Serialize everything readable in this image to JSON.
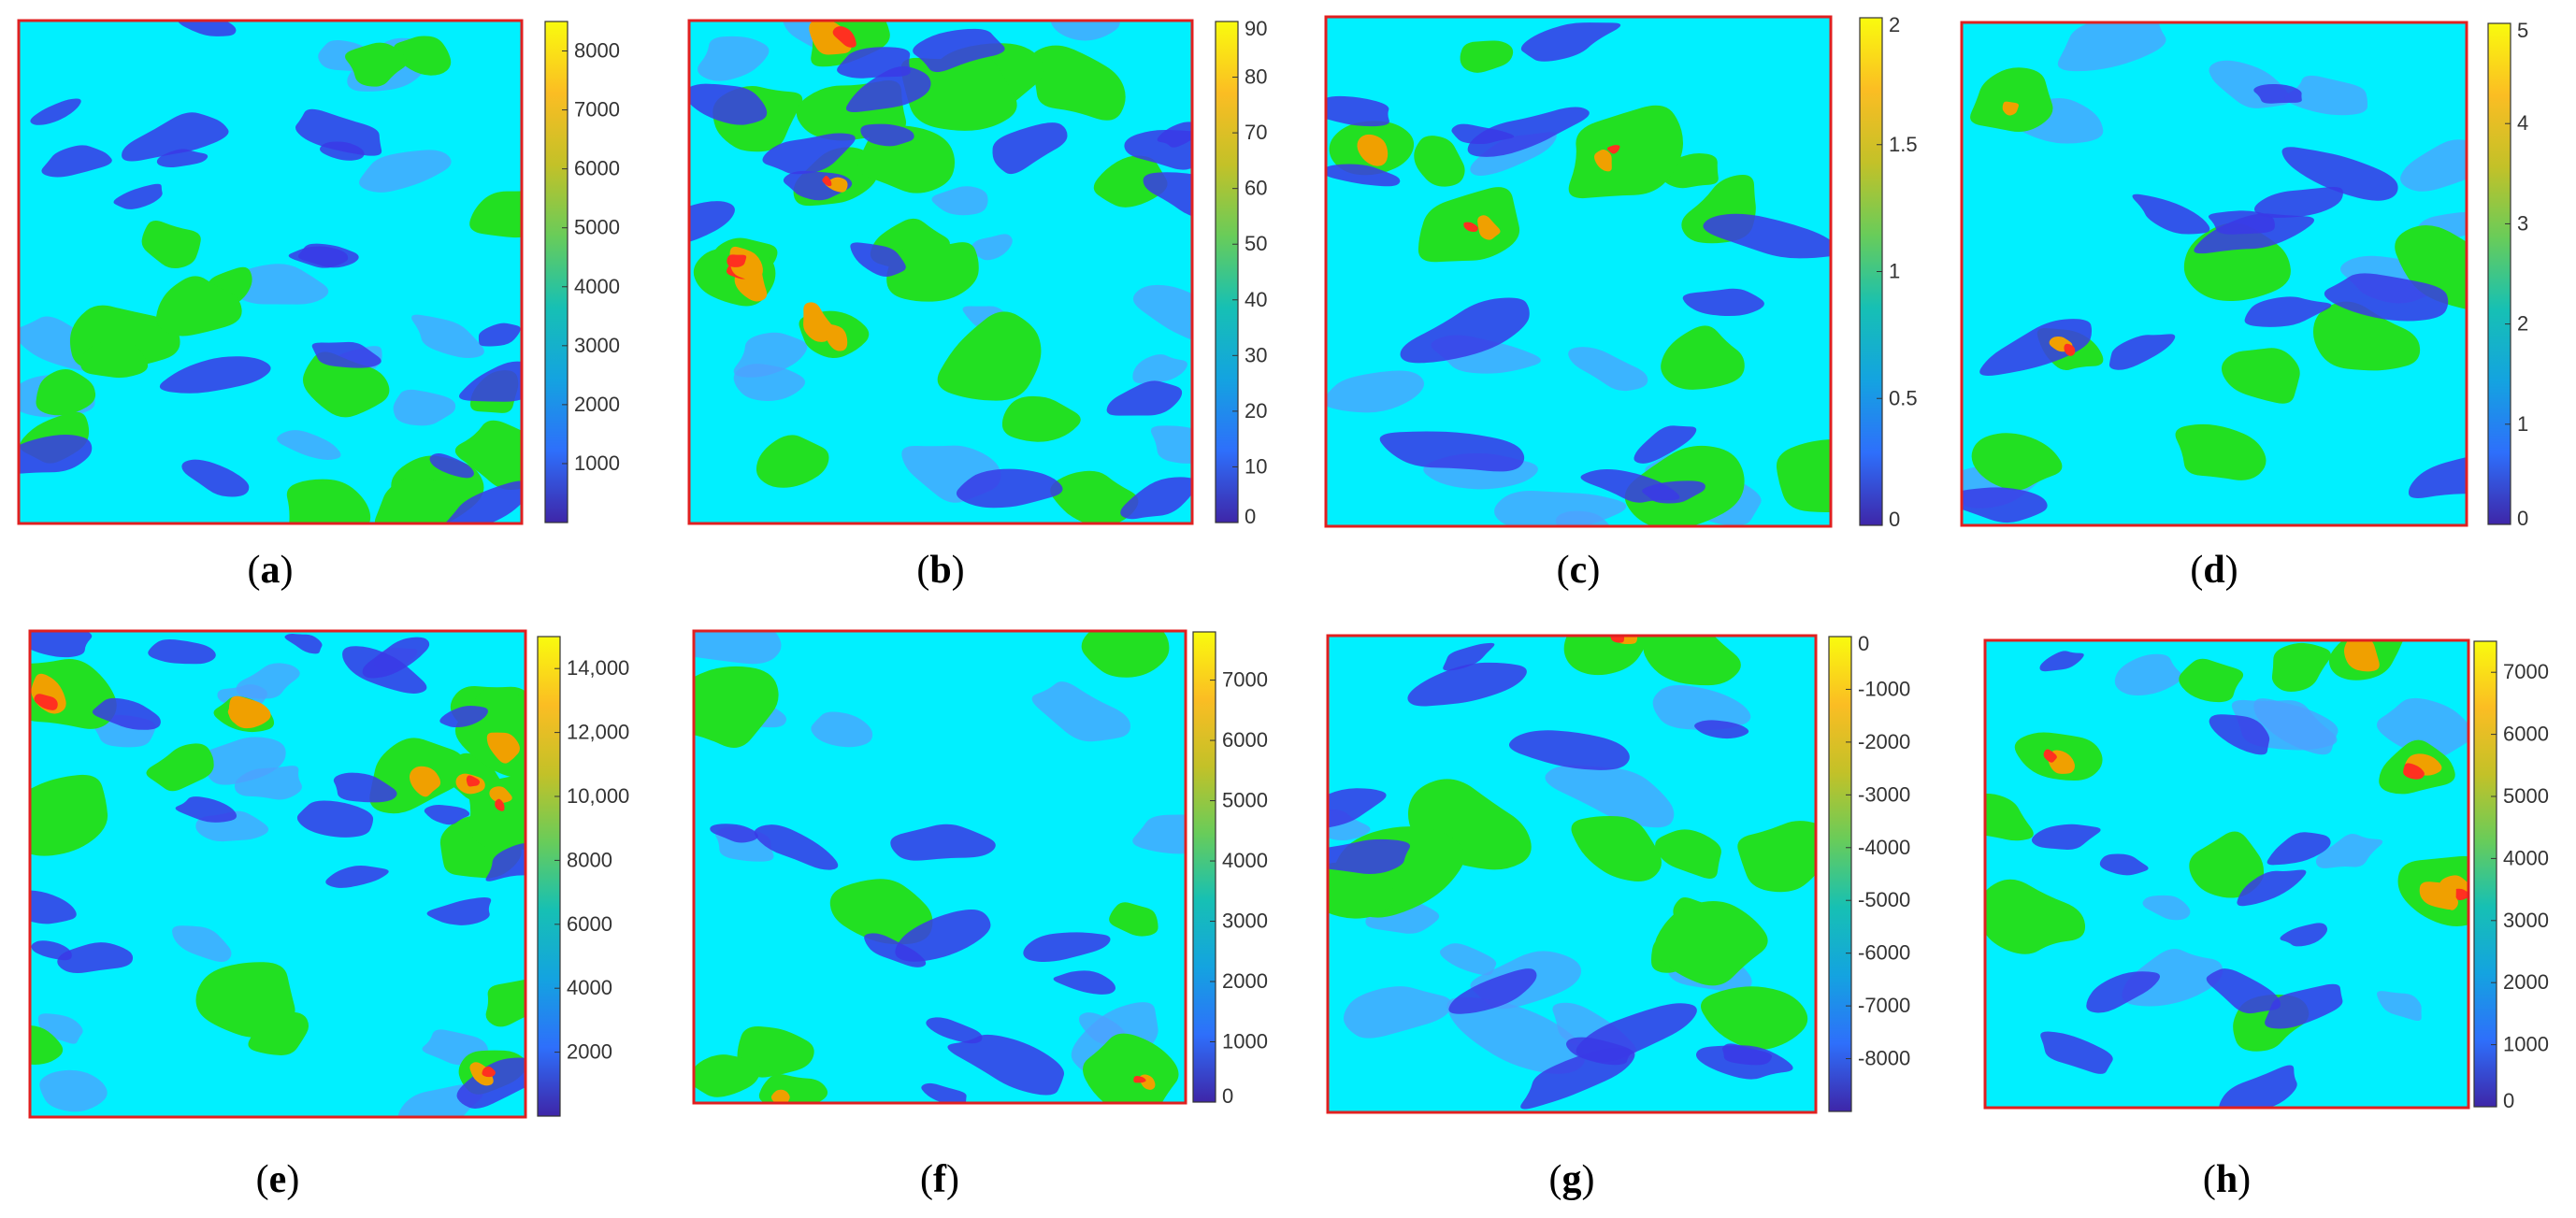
{
  "figure": {
    "colormap": [
      "#3e26a8",
      "#2e6ffb",
      "#14a3e0",
      "#16c0b4",
      "#68cc5a",
      "#c3c128",
      "#fbbd23",
      "#f9fb0e"
    ],
    "map_palette": {
      "deep": "#3a3ae6",
      "low": "#4fa0ff",
      "base": "#00f0ff",
      "mid": "#22e022",
      "high": "#f0a000",
      "peak": "#ff3020"
    },
    "frame_color": "#e02020"
  },
  "chart_data": [
    {
      "id": "a",
      "type": "heatmap",
      "label": "a",
      "title": "",
      "colorbar": {
        "ticks": [
          "1000",
          "2000",
          "3000",
          "4000",
          "5000",
          "6000",
          "7000",
          "8000"
        ],
        "min": 0,
        "max": 8500
      }
    },
    {
      "id": "b",
      "type": "heatmap",
      "label": "b",
      "title": "",
      "colorbar": {
        "ticks": [
          "0",
          "10",
          "20",
          "30",
          "40",
          "50",
          "60",
          "70",
          "80",
          "90"
        ],
        "min": 0,
        "max": 90
      }
    },
    {
      "id": "c",
      "type": "heatmap",
      "label": "c",
      "title": "",
      "colorbar": {
        "ticks": [
          "0",
          "0.5",
          "1",
          "1.5",
          "2"
        ],
        "min": 0,
        "max": 2
      }
    },
    {
      "id": "d",
      "type": "heatmap",
      "label": "d",
      "title": "",
      "colorbar": {
        "ticks": [
          "0",
          "1",
          "2",
          "3",
          "4",
          "5"
        ],
        "min": 0,
        "max": 5
      }
    },
    {
      "id": "e",
      "type": "heatmap",
      "label": "e",
      "title": "",
      "colorbar": {
        "ticks": [
          "2000",
          "4000",
          "6000",
          "8000",
          "10,000",
          "12,000",
          "14,000"
        ],
        "min": 0,
        "max": 15000
      }
    },
    {
      "id": "f",
      "type": "heatmap",
      "label": "f",
      "title": "",
      "colorbar": {
        "ticks": [
          "0",
          "1000",
          "2000",
          "3000",
          "4000",
          "5000",
          "6000",
          "7000"
        ],
        "min": 0,
        "max": 7800
      }
    },
    {
      "id": "g",
      "type": "heatmap",
      "label": "g",
      "title": "",
      "colorbar": {
        "ticks": [
          "-8000",
          "-7000",
          "-6000",
          "-5000",
          "-4000",
          "-3000",
          "-2000",
          "-1000",
          "0"
        ],
        "min": -9000,
        "max": 0
      }
    },
    {
      "id": "h",
      "type": "heatmap",
      "label": "h",
      "title": "",
      "colorbar": {
        "ticks": [
          "0",
          "1000",
          "2000",
          "3000",
          "4000",
          "5000",
          "6000",
          "7000"
        ],
        "min": 0,
        "max": 7500
      }
    }
  ]
}
